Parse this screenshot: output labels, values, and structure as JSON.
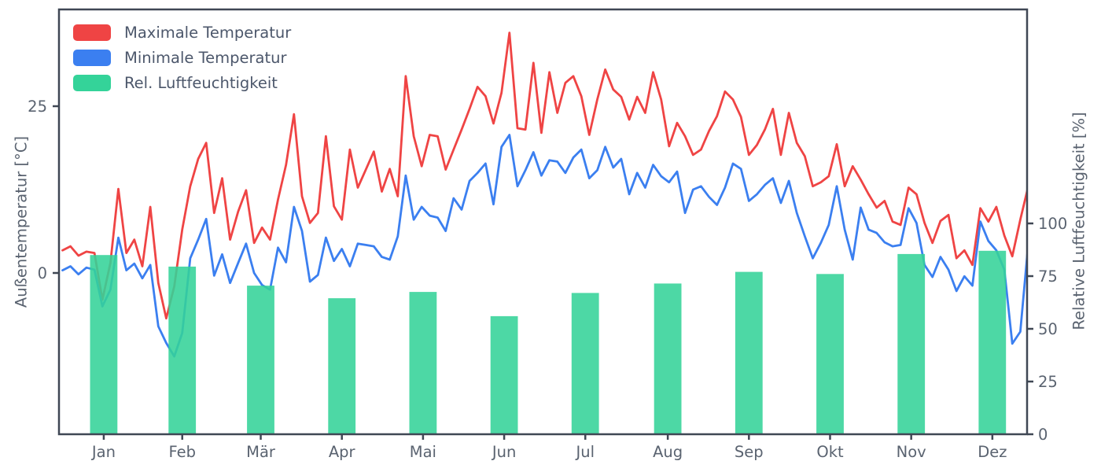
{
  "figure": {
    "background": "#ffffff",
    "spine_color": "#3f4754",
    "tick_text_color": "#5a6370",
    "legend_text_color": "#4c576b"
  },
  "chart_data": {
    "type": "line+bar",
    "title": "",
    "x_ticks": [
      {
        "label": "Jan",
        "day": 15.5
      },
      {
        "label": "Feb",
        "day": 45
      },
      {
        "label": "Mär",
        "day": 74.5
      },
      {
        "label": "Apr",
        "day": 105
      },
      {
        "label": "Mai",
        "day": 135.5
      },
      {
        "label": "Jun",
        "day": 166
      },
      {
        "label": "Jul",
        "day": 196.5
      },
      {
        "label": "Aug",
        "day": 227.5
      },
      {
        "label": "Sep",
        "day": 258
      },
      {
        "label": "Okt",
        "day": 288.5
      },
      {
        "label": "Nov",
        "day": 319
      },
      {
        "label": "Dez",
        "day": 349.5
      }
    ],
    "left_axis": {
      "label": "Außentemperatur [°C]",
      "ticks": [
        0,
        25
      ],
      "range": [
        -24.2,
        39.5
      ]
    },
    "right_axis": {
      "label": "Relative Luftfeuchtigkeit [%]",
      "ticks": [
        0,
        25,
        50,
        75,
        100
      ],
      "range": [
        0,
        201.5
      ]
    },
    "legend": {
      "position": "upper left"
    },
    "grid": false,
    "bar_width_days": 10.3,
    "x_start_day": 0,
    "x_step_days": 3,
    "series": [
      {
        "name": "Maximale Temperatur",
        "type": "line",
        "axis": "left",
        "color": "#ef4444",
        "values": [
          3.4,
          4.0,
          2.6,
          3.2,
          3.0,
          -4.0,
          1.5,
          12.6,
          3.0,
          5.0,
          1.0,
          9.9,
          -1.5,
          -6.8,
          -2.0,
          6.5,
          13.0,
          17.1,
          19.5,
          9.0,
          14.2,
          5.0,
          9.2,
          12.4,
          4.5,
          6.8,
          5.0,
          11.0,
          16.2,
          23.8,
          11.5,
          7.5,
          9.0,
          20.5,
          10.0,
          8.0,
          18.5,
          12.8,
          15.5,
          18.2,
          12.2,
          15.6,
          11.5,
          29.5,
          20.5,
          16.0,
          20.7,
          20.5,
          15.5,
          18.5,
          21.5,
          24.6,
          27.9,
          26.5,
          22.4,
          27.0,
          36.0,
          21.7,
          21.5,
          31.5,
          21.0,
          30.1,
          24.0,
          28.5,
          29.5,
          26.5,
          20.7,
          26.0,
          30.5,
          27.5,
          26.4,
          23.0,
          26.4,
          24.0,
          30.1,
          26.0,
          19.0,
          22.5,
          20.5,
          17.7,
          18.5,
          21.3,
          23.5,
          27.2,
          26.0,
          23.4,
          17.7,
          19.2,
          21.5,
          24.6,
          17.7,
          24.0,
          19.5,
          17.5,
          13.0,
          13.6,
          14.5,
          19.3,
          13.0,
          16.0,
          14.0,
          11.8,
          9.8,
          10.8,
          7.7,
          7.2,
          12.8,
          11.8,
          7.5,
          4.5,
          7.8,
          8.7,
          2.2,
          3.4,
          1.2,
          9.7,
          7.7,
          9.9,
          5.6,
          2.5,
          8.0,
          13.0
        ]
      },
      {
        "name": "Minimale Temperatur",
        "type": "line",
        "axis": "left",
        "color": "#3b7ff0",
        "values": [
          0.4,
          1.0,
          -0.2,
          0.8,
          0.5,
          -5.0,
          -2.5,
          5.3,
          0.4,
          1.4,
          -0.8,
          1.2,
          -8.0,
          -10.5,
          -12.5,
          -9.0,
          2.2,
          5.0,
          8.1,
          -0.4,
          2.8,
          -1.5,
          1.5,
          4.4,
          0.0,
          -1.8,
          -2.5,
          3.8,
          1.6,
          9.9,
          6.3,
          -1.3,
          -0.3,
          5.3,
          1.8,
          3.6,
          1.0,
          4.4,
          4.2,
          4.0,
          2.4,
          2.0,
          5.5,
          14.6,
          8.0,
          9.9,
          8.6,
          8.3,
          6.3,
          11.2,
          9.5,
          13.8,
          15.0,
          16.4,
          10.3,
          18.9,
          20.7,
          13.0,
          15.4,
          18.1,
          14.6,
          16.9,
          16.7,
          15.0,
          17.3,
          18.5,
          14.2,
          15.4,
          18.9,
          15.8,
          17.1,
          11.8,
          15.0,
          12.8,
          16.2,
          14.5,
          13.6,
          15.2,
          9.0,
          12.5,
          13.0,
          11.4,
          10.2,
          12.8,
          16.4,
          15.6,
          10.8,
          11.8,
          13.2,
          14.2,
          10.5,
          13.8,
          9.0,
          5.5,
          2.2,
          4.5,
          7.2,
          13.0,
          6.5,
          2.0,
          9.8,
          6.5,
          6.0,
          4.6,
          4.0,
          4.2,
          9.7,
          7.5,
          1.2,
          -0.6,
          2.4,
          0.5,
          -2.7,
          -0.5,
          -1.9,
          7.7,
          4.8,
          3.4,
          0.5,
          -10.6,
          -8.8,
          4.4
        ]
      },
      {
        "name": "Rel. Luftfeuchtigkeit",
        "type": "bar",
        "axis": "right",
        "color": "#34d399",
        "categories": [
          "Jan",
          "Feb",
          "Mär",
          "Apr",
          "Mai",
          "Jun",
          "Jul",
          "Aug",
          "Sep",
          "Okt",
          "Nov",
          "Dez"
        ],
        "values": [
          85,
          79.5,
          70.5,
          64.5,
          67.5,
          56,
          67,
          71.5,
          77,
          76,
          85.5,
          87
        ]
      }
    ]
  }
}
